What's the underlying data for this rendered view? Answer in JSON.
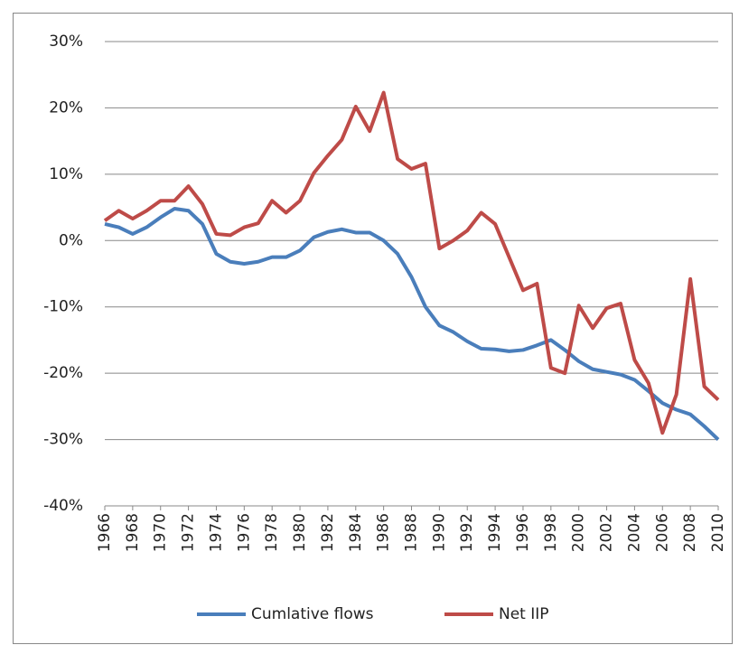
{
  "chart_data": {
    "type": "line",
    "x": [
      1966,
      1967,
      1968,
      1969,
      1970,
      1971,
      1972,
      1973,
      1974,
      1975,
      1976,
      1977,
      1978,
      1979,
      1980,
      1981,
      1982,
      1983,
      1984,
      1985,
      1986,
      1987,
      1988,
      1989,
      1990,
      1991,
      1992,
      1993,
      1994,
      1995,
      1996,
      1997,
      1998,
      1999,
      2000,
      2001,
      2002,
      2003,
      2004,
      2005,
      2006,
      2007,
      2008,
      2009,
      2010
    ],
    "xlim": [
      1966,
      2010
    ],
    "xticks": [
      1966,
      1968,
      1970,
      1972,
      1974,
      1976,
      1978,
      1980,
      1982,
      1984,
      1986,
      1988,
      1990,
      1992,
      1994,
      1996,
      1998,
      2000,
      2002,
      2004,
      2006,
      2008,
      2010
    ],
    "ylim": [
      -40,
      30
    ],
    "yticks": [
      {
        "value": -40,
        "label": "-40%"
      },
      {
        "value": -30,
        "label": "-30%"
      },
      {
        "value": -20,
        "label": "-20%"
      },
      {
        "value": -10,
        "label": "-10%"
      },
      {
        "value": 0,
        "label": "0%"
      },
      {
        "value": 10,
        "label": "10%"
      },
      {
        "value": 20,
        "label": "20%"
      },
      {
        "value": 30,
        "label": "30%"
      }
    ],
    "grid": true,
    "legend": "bottom",
    "series": [
      {
        "name": "Cumlative flows",
        "color": "#4a7ebb",
        "values": [
          2.5,
          2,
          1,
          2,
          3.5,
          4.8,
          4.5,
          2.5,
          -2,
          -3.2,
          -3.5,
          -3.2,
          -2.5,
          -2.5,
          -1.5,
          0.5,
          1.3,
          1.7,
          1.2,
          1.2,
          0,
          -2,
          -5.5,
          -10,
          -12.8,
          -13.8,
          -15.2,
          -16.3,
          -16.4,
          -16.7,
          -16.5,
          -15.8,
          -15,
          -16.5,
          -18.2,
          -19.4,
          -19.8,
          -20.2,
          -21,
          -22.7,
          -24.5,
          -25.5,
          -26.2,
          -28,
          -30
        ]
      },
      {
        "name": "Net IIP",
        "color": "#be4b48",
        "values": [
          3,
          4.5,
          3.3,
          4.5,
          6,
          6,
          8.2,
          5.5,
          1,
          0.8,
          2,
          2.6,
          6,
          4.2,
          6,
          10.2,
          12.8,
          15.2,
          20.2,
          16.5,
          22.3,
          12.3,
          10.8,
          11.6,
          -1.2,
          0,
          1.5,
          4.2,
          2.5,
          -2.5,
          -7.5,
          -6.5,
          -19.2,
          -20,
          -9.8,
          -13.2,
          -10.2,
          -9.5,
          -18,
          -21.5,
          -29,
          -23.2,
          -5.8,
          -22,
          -24
        ]
      }
    ]
  }
}
